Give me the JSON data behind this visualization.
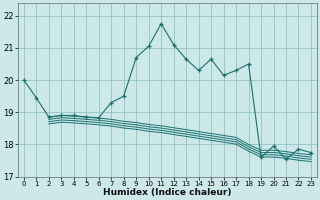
{
  "xlabel": "Humidex (Indice chaleur)",
  "bg_color": "#cce8e8",
  "grid_color": "#88bbbb",
  "line_color": "#1a7070",
  "xlim": [
    -0.5,
    23.5
  ],
  "ylim": [
    17.0,
    22.4
  ],
  "yticks": [
    17,
    18,
    19,
    20,
    21,
    22
  ],
  "xticks": [
    0,
    1,
    2,
    3,
    4,
    5,
    6,
    7,
    8,
    9,
    10,
    11,
    12,
    13,
    14,
    15,
    16,
    17,
    18,
    19,
    20,
    21,
    22,
    23
  ],
  "line1_x": [
    0,
    1,
    2,
    3,
    4,
    5,
    6,
    7,
    8,
    9,
    10,
    11,
    12,
    13,
    14,
    15,
    16,
    17,
    18,
    19,
    20,
    21,
    22,
    23
  ],
  "line1_y": [
    20.0,
    19.45,
    18.85,
    18.9,
    18.9,
    18.85,
    18.83,
    19.3,
    19.5,
    20.7,
    21.05,
    21.75,
    21.1,
    20.65,
    20.3,
    20.65,
    20.15,
    20.3,
    20.5,
    17.6,
    17.95,
    17.55,
    17.85,
    17.75
  ],
  "cluster_lines": [
    {
      "x": [
        2,
        3,
        4,
        5,
        6,
        7,
        8,
        9,
        10,
        11,
        12,
        13,
        14,
        15,
        16,
        17,
        18,
        19,
        20,
        21,
        22,
        23
      ],
      "y": [
        18.85,
        18.9,
        18.88,
        18.85,
        18.82,
        18.78,
        18.72,
        18.68,
        18.62,
        18.58,
        18.52,
        18.46,
        18.4,
        18.34,
        18.28,
        18.22,
        18.0,
        17.82,
        17.82,
        17.78,
        17.72,
        17.68
      ]
    },
    {
      "x": [
        2,
        3,
        4,
        5,
        6,
        7,
        8,
        9,
        10,
        11,
        12,
        13,
        14,
        15,
        16,
        17,
        18,
        19,
        20,
        21,
        22,
        23
      ],
      "y": [
        18.78,
        18.83,
        18.81,
        18.78,
        18.75,
        18.71,
        18.65,
        18.61,
        18.55,
        18.51,
        18.45,
        18.39,
        18.33,
        18.27,
        18.21,
        18.15,
        17.93,
        17.75,
        17.75,
        17.71,
        17.65,
        17.61
      ]
    },
    {
      "x": [
        2,
        3,
        4,
        5,
        6,
        7,
        8,
        9,
        10,
        11,
        12,
        13,
        14,
        15,
        16,
        17,
        18,
        19,
        20,
        21,
        22,
        23
      ],
      "y": [
        18.71,
        18.76,
        18.74,
        18.71,
        18.68,
        18.64,
        18.58,
        18.54,
        18.48,
        18.44,
        18.38,
        18.32,
        18.26,
        18.2,
        18.14,
        18.08,
        17.86,
        17.68,
        17.68,
        17.64,
        17.58,
        17.54
      ]
    },
    {
      "x": [
        2,
        3,
        4,
        5,
        6,
        7,
        8,
        9,
        10,
        11,
        12,
        13,
        14,
        15,
        16,
        17,
        18,
        19,
        20,
        21,
        22,
        23
      ],
      "y": [
        18.64,
        18.69,
        18.67,
        18.64,
        18.61,
        18.57,
        18.51,
        18.47,
        18.41,
        18.37,
        18.31,
        18.25,
        18.19,
        18.13,
        18.07,
        18.01,
        17.79,
        17.61,
        17.61,
        17.57,
        17.51,
        17.47
      ]
    }
  ],
  "cluster_line_with_markers_x": [
    3,
    4,
    5,
    7,
    8,
    9
  ],
  "cluster_line_with_markers_y": [
    18.9,
    18.88,
    18.85,
    19.3,
    19.45,
    19.5
  ]
}
